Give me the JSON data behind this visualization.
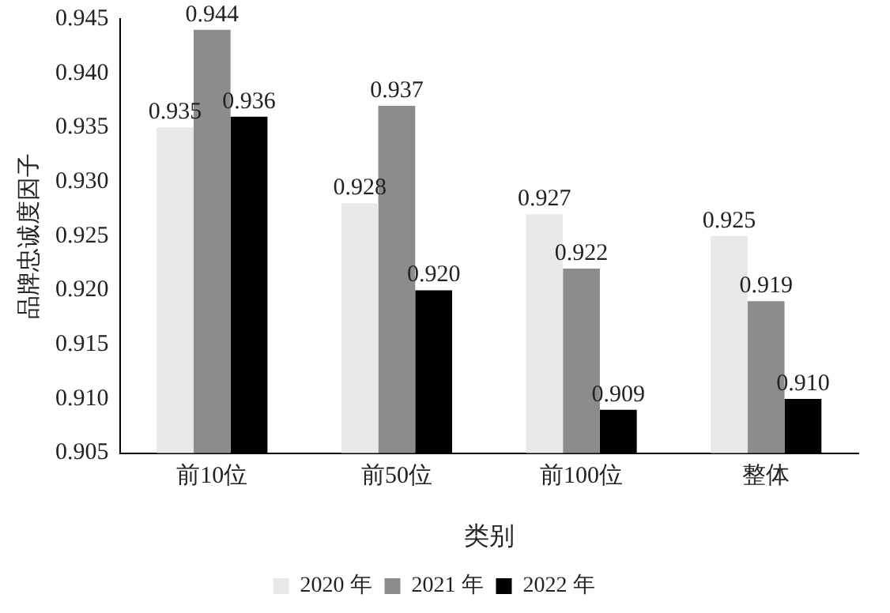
{
  "chart_data": {
    "type": "bar",
    "xlabel": "类别",
    "ylabel": "品牌忠诚度因子",
    "categories": [
      "前10位",
      "前50位",
      "前100位",
      "整体"
    ],
    "series": [
      {
        "name": "2020 年",
        "color": "#e8e8e8",
        "values": [
          0.935,
          0.928,
          0.927,
          0.925
        ],
        "value_labels": [
          "0.935",
          "0.928",
          "0.927",
          "0.925"
        ]
      },
      {
        "name": "2021 年",
        "color": "#8c8c8c",
        "values": [
          0.944,
          0.937,
          0.922,
          0.919
        ],
        "value_labels": [
          "0.944",
          "0.937",
          "0.922",
          "0.919"
        ]
      },
      {
        "name": "2022 年",
        "color": "#000000",
        "values": [
          0.936,
          0.92,
          0.909,
          0.91
        ],
        "value_labels": [
          "0.936",
          "0.920",
          "0.909",
          "0.910"
        ]
      }
    ],
    "ylim": [
      0.905,
      0.945
    ],
    "yticks": [
      0.905,
      {
        "value": 0.91,
        "label": "0.910"
      },
      0.915,
      {
        "value": 0.92,
        "label": "0.920"
      },
      0.925,
      {
        "value": 0.93,
        "label": "0.930"
      },
      0.935,
      {
        "value": 0.94,
        "label": "0.940"
      },
      0.945
    ],
    "grid": false,
    "legend": "bottom"
  }
}
